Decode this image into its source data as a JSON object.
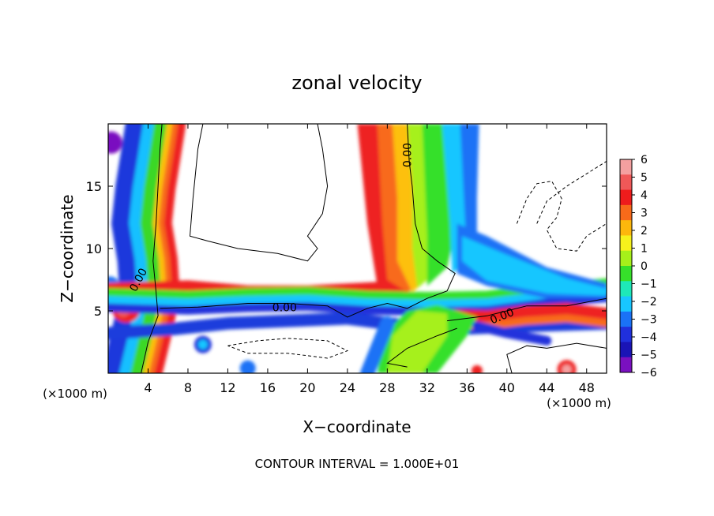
{
  "chart_data": {
    "type": "heatmap",
    "title": "zonal velocity",
    "xlabel": "X−coordinate",
    "ylabel": "Z−coordinate",
    "x_unit_left": "(×1000 m)",
    "x_unit_right": "(×1000 m)",
    "xlim": [
      0,
      50
    ],
    "ylim": [
      0,
      20
    ],
    "xticks": [
      4,
      8,
      12,
      16,
      20,
      24,
      28,
      32,
      36,
      40,
      44,
      48
    ],
    "xtick_labels": [
      "4",
      "8",
      "12",
      "16",
      "20",
      "24",
      "28",
      "32",
      "36",
      "40",
      "44",
      "48"
    ],
    "yticks": [
      5,
      10,
      15
    ],
    "ytick_labels": [
      "5",
      "10",
      "15"
    ],
    "colorbar": {
      "levels": [
        6,
        5,
        4,
        3,
        2,
        1,
        0,
        -1,
        -2,
        -3,
        -4,
        -5,
        -6
      ],
      "labels": [
        "6",
        "5",
        "4",
        "3",
        "2",
        "1",
        "0",
        "−1",
        "−2",
        "−3",
        "−4",
        "−5",
        "−6"
      ],
      "colors": [
        "#f4a0a0",
        "#f05858",
        "#ee1c1c",
        "#f86a1a",
        "#fdb70c",
        "#f6f21c",
        "#a6f01a",
        "#36e02a",
        "#1ee8b8",
        "#18c6ff",
        "#1a72f6",
        "#2030dc",
        "#1a14b6",
        "#7a10c0"
      ]
    },
    "contour_labels": [
      "0.00",
      "0.00",
      "0.00",
      "0.00"
    ],
    "grid": false
  },
  "footer": {
    "contour_interval": "CONTOUR INTERVAL = 1.000E+01"
  }
}
